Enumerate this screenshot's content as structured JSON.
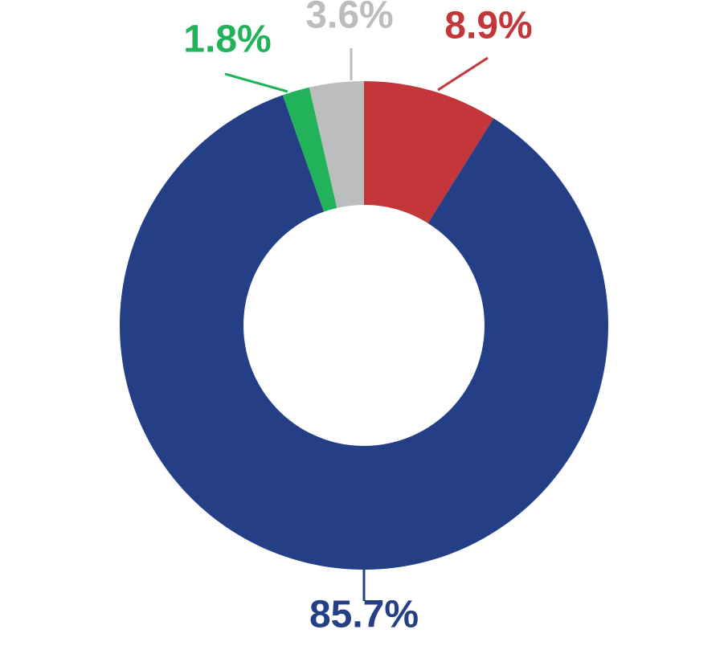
{
  "chart_data": {
    "type": "donut",
    "values": [
      8.9,
      85.7,
      1.8,
      3.6
    ],
    "value_labels": [
      "8.9%",
      "85.7%",
      "1.8%",
      "3.6%"
    ],
    "colors": [
      "#c3363a",
      "#253f87",
      "#22b35a",
      "#bcbdbf"
    ]
  }
}
